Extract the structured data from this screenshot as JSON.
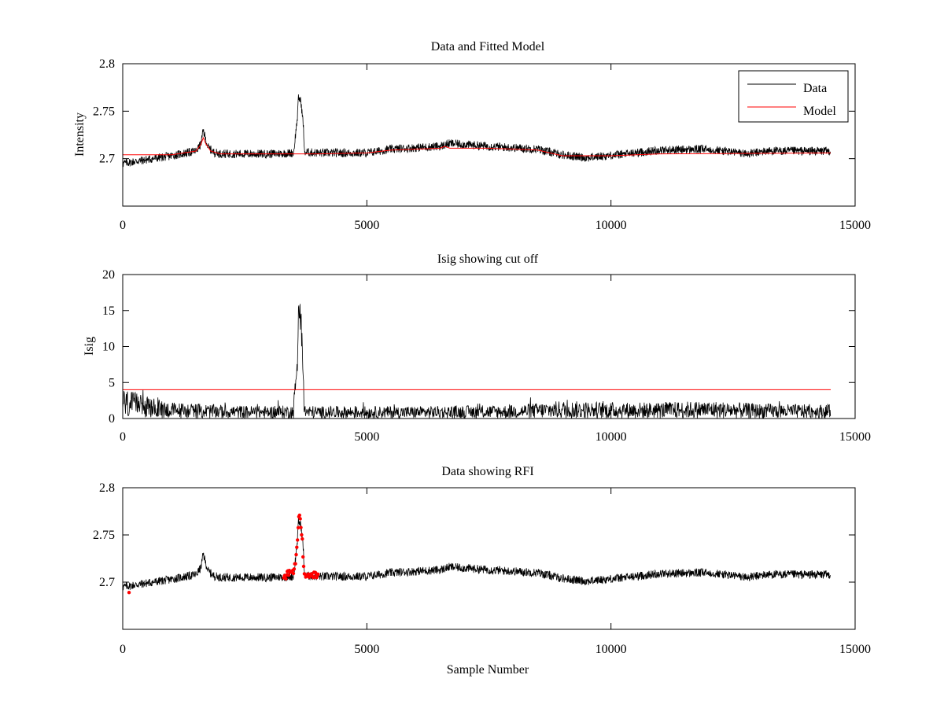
{
  "chart_data": [
    {
      "type": "line",
      "title": "Data and Fitted Model",
      "xlabel": "",
      "ylabel": "Intensity",
      "xlim": [
        0,
        15000
      ],
      "ylim": [
        2.65,
        2.8
      ],
      "x_ticks": [
        0,
        5000,
        10000,
        15000
      ],
      "x_tick_labels": [
        "0",
        "5000",
        "10000",
        "15000"
      ],
      "y_ticks": [
        2.7,
        2.75,
        2.8
      ],
      "y_tick_labels": [
        "2.7",
        "2.75",
        "2.8"
      ],
      "grid": false,
      "legend": {
        "placement": "top-right",
        "entries": [
          {
            "label": "Data",
            "color": "#000000"
          },
          {
            "label": "Model",
            "color": "#ff0000"
          }
        ]
      },
      "series": [
        {
          "name": "Data",
          "color": "#000000",
          "noise": 0.0045,
          "x": [
            0,
            500,
            1000,
            1500,
            1600,
            1650,
            1700,
            1750,
            1850,
            2000,
            3000,
            3500,
            3580,
            3600,
            3650,
            3700,
            3720,
            4000,
            5000,
            5500,
            6500,
            6700,
            7500,
            8500,
            9000,
            9500,
            10500,
            11000,
            12000,
            12500,
            12800,
            13200,
            14500
          ],
          "values": [
            2.695,
            2.699,
            2.703,
            2.708,
            2.715,
            2.73,
            2.72,
            2.712,
            2.707,
            2.705,
            2.705,
            2.706,
            2.745,
            2.765,
            2.76,
            2.735,
            2.707,
            2.706,
            2.706,
            2.71,
            2.713,
            2.716,
            2.713,
            2.71,
            2.704,
            2.701,
            2.706,
            2.709,
            2.71,
            2.707,
            2.705,
            2.708,
            2.708
          ]
        },
        {
          "name": "Model",
          "color": "#ff0000",
          "x": [
            0,
            1000,
            1500,
            1600,
            1650,
            1700,
            1800,
            2000,
            3000,
            4000,
            5000,
            5500,
            6500,
            6600,
            6700,
            7500,
            8500,
            9000,
            10000,
            11000,
            14500
          ],
          "values": [
            2.704,
            2.704,
            2.708,
            2.715,
            2.722,
            2.716,
            2.708,
            2.705,
            2.705,
            2.705,
            2.706,
            2.709,
            2.711,
            2.713,
            2.711,
            2.711,
            2.709,
            2.703,
            2.703,
            2.705,
            2.706
          ]
        }
      ]
    },
    {
      "type": "line",
      "title": "Isig showing cut off",
      "xlabel": "",
      "ylabel": "Isig",
      "xlim": [
        0,
        15000
      ],
      "ylim": [
        0,
        20
      ],
      "x_ticks": [
        0,
        5000,
        10000,
        15000
      ],
      "x_tick_labels": [
        "0",
        "5000",
        "10000",
        "15000"
      ],
      "y_ticks": [
        0,
        5,
        10,
        15,
        20
      ],
      "y_tick_labels": [
        "0",
        "5",
        "10",
        "15",
        "20"
      ],
      "grid": false,
      "series": [
        {
          "name": "Isig",
          "color": "#000000",
          "x": [
            0,
            500,
            1000,
            2000,
            3000,
            3500,
            3580,
            3600,
            3650,
            3700,
            3720,
            4000,
            6000,
            8000,
            9000,
            10000,
            11000,
            12000,
            13000,
            14500
          ],
          "values": [
            2.2,
            1.6,
            1.2,
            1.0,
            0.9,
            1.0,
            8.0,
            16.0,
            14.0,
            6.0,
            1.0,
            0.9,
            0.9,
            1.0,
            1.3,
            1.2,
            1.2,
            1.3,
            1.1,
            1.0
          ]
        },
        {
          "name": "Cut off",
          "color": "#ff0000",
          "x": [
            0,
            14500
          ],
          "values": [
            4,
            4
          ]
        }
      ]
    },
    {
      "type": "scatter",
      "title": "Data showing RFI",
      "xlabel": "Sample Number",
      "ylabel": "",
      "xlim": [
        0,
        15000
      ],
      "ylim": [
        2.65,
        2.8
      ],
      "x_ticks": [
        0,
        5000,
        10000,
        15000
      ],
      "x_tick_labels": [
        "0",
        "5000",
        "10000",
        "15000"
      ],
      "y_ticks": [
        2.7,
        2.75,
        2.8
      ],
      "y_tick_labels": [
        "2.7",
        "2.75",
        "2.8"
      ],
      "grid": false,
      "series": [
        {
          "name": "Data",
          "color": "#000000",
          "noise": 0.0045,
          "x": [
            0,
            500,
            1000,
            1500,
            1600,
            1650,
            1700,
            1750,
            1850,
            2000,
            3000,
            3500,
            3580,
            3600,
            3650,
            3700,
            3720,
            4000,
            5000,
            5500,
            6500,
            6700,
            7500,
            8500,
            9000,
            9500,
            10500,
            11000,
            12000,
            12500,
            12800,
            13200,
            14500
          ],
          "values": [
            2.695,
            2.699,
            2.703,
            2.708,
            2.715,
            2.73,
            2.72,
            2.712,
            2.707,
            2.705,
            2.705,
            2.706,
            2.745,
            2.765,
            2.76,
            2.735,
            2.707,
            2.706,
            2.706,
            2.71,
            2.713,
            2.716,
            2.713,
            2.71,
            2.704,
            2.701,
            2.706,
            2.709,
            2.71,
            2.707,
            2.705,
            2.708,
            2.708
          ]
        },
        {
          "name": "RFI",
          "color": "#ff0000",
          "x": [
            3300,
            3400,
            3500,
            3550,
            3580,
            3600,
            3620,
            3650,
            3680,
            3700,
            3720,
            3750,
            3800,
            3900,
            4000
          ],
          "values": [
            2.706,
            2.709,
            2.712,
            2.725,
            2.745,
            2.765,
            2.768,
            2.76,
            2.745,
            2.72,
            2.712,
            2.708,
            2.708,
            2.707,
            2.706
          ],
          "extra_points": [
            {
              "x": 130,
              "y": 2.689
            }
          ]
        }
      ]
    }
  ]
}
